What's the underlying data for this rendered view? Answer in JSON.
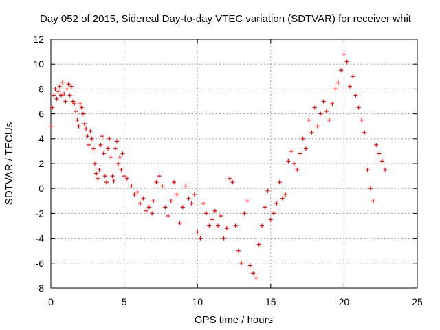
{
  "chart_data": {
    "type": "scatter",
    "title": "Day 052 of 2015, Sidereal Day-to-day VTEC variation (SDTVAR) for receiver whit",
    "xlabel": "GPS time / hours",
    "ylabel": "SDTVAR / TECUs",
    "xlim": [
      0,
      25
    ],
    "ylim": [
      -8,
      12
    ],
    "xticks": [
      "0",
      "5",
      "10",
      "15",
      "20",
      "25"
    ],
    "yticks": [
      "-8",
      "-6",
      "-4",
      "-2",
      "0",
      "2",
      "4",
      "6",
      "8",
      "10",
      "12"
    ],
    "grid": true,
    "marker": "+",
    "color": "#ff0000",
    "series": [
      {
        "name": "SDTVAR",
        "points": [
          [
            0.0,
            5.0
          ],
          [
            0.1,
            6.5
          ],
          [
            0.2,
            7.5
          ],
          [
            0.3,
            8.0
          ],
          [
            0.4,
            7.2
          ],
          [
            0.5,
            7.8
          ],
          [
            0.6,
            8.2
          ],
          [
            0.7,
            7.5
          ],
          [
            0.8,
            8.5
          ],
          [
            0.9,
            7.6
          ],
          [
            1.0,
            7.0
          ],
          [
            1.1,
            8.0
          ],
          [
            1.2,
            8.4
          ],
          [
            1.3,
            7.5
          ],
          [
            1.4,
            8.2
          ],
          [
            1.5,
            7.0
          ],
          [
            1.6,
            6.8
          ],
          [
            1.7,
            6.2
          ],
          [
            1.8,
            5.5
          ],
          [
            1.9,
            5.0
          ],
          [
            2.0,
            6.8
          ],
          [
            2.1,
            6.5
          ],
          [
            2.2,
            6.0
          ],
          [
            2.3,
            5.2
          ],
          [
            2.4,
            4.8
          ],
          [
            2.5,
            4.2
          ],
          [
            2.6,
            3.5
          ],
          [
            2.7,
            4.6
          ],
          [
            2.8,
            4.0
          ],
          [
            2.9,
            3.2
          ],
          [
            3.0,
            2.0
          ],
          [
            3.1,
            1.2
          ],
          [
            3.2,
            0.8
          ],
          [
            3.3,
            1.5
          ],
          [
            3.4,
            3.5
          ],
          [
            3.5,
            4.2
          ],
          [
            3.6,
            2.8
          ],
          [
            3.7,
            1.0
          ],
          [
            3.8,
            0.5
          ],
          [
            3.9,
            3.2
          ],
          [
            4.0,
            4.0
          ],
          [
            4.1,
            2.5
          ],
          [
            4.2,
            1.0
          ],
          [
            4.3,
            0.6
          ],
          [
            4.4,
            3.2
          ],
          [
            4.5,
            3.8
          ],
          [
            4.6,
            2.0
          ],
          [
            4.7,
            2.5
          ],
          [
            4.8,
            1.5
          ],
          [
            4.9,
            2.8
          ],
          [
            5.0,
            1.0
          ],
          [
            5.2,
            0.8
          ],
          [
            5.5,
            0.2
          ],
          [
            5.7,
            -0.5
          ],
          [
            5.9,
            -0.3
          ],
          [
            6.1,
            -1.2
          ],
          [
            6.3,
            -0.8
          ],
          [
            6.5,
            -1.8
          ],
          [
            6.7,
            -1.5
          ],
          [
            6.9,
            -2.0
          ],
          [
            7.0,
            -1.0
          ],
          [
            7.2,
            0.5
          ],
          [
            7.4,
            1.0
          ],
          [
            7.6,
            0.2
          ],
          [
            7.8,
            -1.5
          ],
          [
            8.0,
            -2.2
          ],
          [
            8.2,
            -1.0
          ],
          [
            8.4,
            0.5
          ],
          [
            8.6,
            -0.5
          ],
          [
            8.8,
            -2.8
          ],
          [
            9.0,
            -1.5
          ],
          [
            9.2,
            0.2
          ],
          [
            9.4,
            -0.8
          ],
          [
            9.6,
            -1.2
          ],
          [
            9.8,
            -0.5
          ],
          [
            10.0,
            -3.5
          ],
          [
            10.2,
            -4.0
          ],
          [
            10.4,
            -1.2
          ],
          [
            10.6,
            -2.0
          ],
          [
            10.8,
            -3.0
          ],
          [
            11.0,
            -2.5
          ],
          [
            11.2,
            -1.8
          ],
          [
            11.4,
            -3.0
          ],
          [
            11.6,
            -2.2
          ],
          [
            11.8,
            -4.0
          ],
          [
            12.0,
            -3.2
          ],
          [
            12.2,
            0.8
          ],
          [
            12.4,
            0.5
          ],
          [
            12.6,
            -3.0
          ],
          [
            12.8,
            -5.0
          ],
          [
            13.0,
            -6.0
          ],
          [
            13.2,
            -2.0
          ],
          [
            13.4,
            -1.0
          ],
          [
            13.6,
            -6.2
          ],
          [
            13.8,
            -6.8
          ],
          [
            14.0,
            -7.2
          ],
          [
            14.2,
            -4.5
          ],
          [
            14.4,
            -3.0
          ],
          [
            14.6,
            -1.5
          ],
          [
            14.8,
            -0.2
          ],
          [
            15.0,
            -2.5
          ],
          [
            15.2,
            -2.0
          ],
          [
            15.4,
            -1.2
          ],
          [
            15.6,
            0.5
          ],
          [
            15.8,
            -0.8
          ],
          [
            16.0,
            -0.5
          ],
          [
            16.2,
            2.2
          ],
          [
            16.4,
            3.0
          ],
          [
            16.6,
            2.0
          ],
          [
            16.8,
            1.5
          ],
          [
            17.0,
            2.8
          ],
          [
            17.2,
            4.0
          ],
          [
            17.4,
            3.2
          ],
          [
            17.6,
            5.5
          ],
          [
            17.8,
            4.5
          ],
          [
            18.0,
            6.5
          ],
          [
            18.2,
            5.0
          ],
          [
            18.4,
            6.0
          ],
          [
            18.6,
            7.0
          ],
          [
            18.8,
            6.2
          ],
          [
            19.0,
            5.5
          ],
          [
            19.2,
            6.8
          ],
          [
            19.4,
            8.0
          ],
          [
            19.6,
            8.5
          ],
          [
            19.8,
            9.5
          ],
          [
            20.0,
            10.8
          ],
          [
            20.2,
            10.2
          ],
          [
            20.4,
            8.2
          ],
          [
            20.6,
            9.0
          ],
          [
            20.8,
            7.5
          ],
          [
            21.0,
            6.5
          ],
          [
            21.2,
            5.5
          ],
          [
            21.4,
            4.5
          ],
          [
            21.6,
            1.5
          ],
          [
            21.8,
            0.0
          ],
          [
            22.0,
            -1.0
          ],
          [
            22.2,
            3.5
          ],
          [
            22.4,
            2.8
          ],
          [
            22.6,
            2.2
          ],
          [
            22.8,
            1.5
          ]
        ]
      }
    ]
  }
}
